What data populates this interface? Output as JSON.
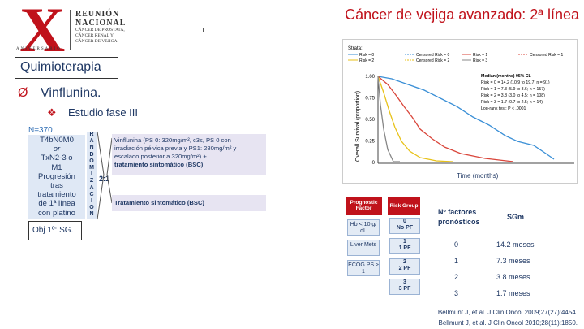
{
  "header": {
    "logo_mark": "X",
    "logo_title": [
      "REUNIÓN",
      "NACIONAL"
    ],
    "logo_sub": [
      "CÁNCER DE PRÓSTATA,",
      "CÁNCER RENAL Y",
      "CÁNCER DE VEJIGA"
    ],
    "logo_anniv": "ANIVERSARIO",
    "title": "Cáncer de vejiga avanzado: 2ª línea"
  },
  "section": "Quimioterapia",
  "bullet": "Vinflunina.",
  "sub_bullet": "Estudio fase III",
  "study": {
    "n": "N=370",
    "population": [
      "T4bN0M0",
      "or",
      "TxN2-3 o",
      "M1",
      "Progresión",
      "tras",
      "tratamiento",
      "de 1ª línea",
      "con platino"
    ],
    "randomization": [
      "R",
      "A",
      "N",
      "D",
      "O",
      "M",
      "I",
      "Z",
      "A",
      "C",
      "I",
      "O",
      "N"
    ],
    "ratio": "2:1",
    "arm1": [
      "Vinflunina (PS 0: 320mg/m², c3s, PS 0 con",
      "irradiación pélvica previa y PS1: 280mg/m² y",
      "escalado posterior a 320mg/m²)  +",
      "tratamiento sintomático (BSC)"
    ],
    "arm2": "Tratamiento sintomático (BSC)",
    "objective": "Obj 1º: SG."
  },
  "km": {
    "legend_title": "Strata:",
    "legend": [
      "Risk = 0",
      "Censored Risk = 0",
      "Risk = 1",
      "Censored Risk = 1",
      "Risk = 2",
      "Censored Risk = 2",
      "Risk = 3"
    ],
    "y_label": "Overall Survival (proportion)",
    "y_ticks": [
      "1.00",
      "0.75",
      "0.50",
      "0.25",
      "0"
    ],
    "x_label": "Time (months)",
    "median": [
      "Median (months) 95% CL",
      "Risk = 0 = 14.2 (10.9 to 19.7; n = 91)",
      "Risk = 1 = 7.3 (5.9 to 8.6; n = 157)",
      "Risk = 2 = 3.8 (3.0 to 4.5; n = 108)",
      "Risk = 3 = 1.7 (0.7 to 2.5; n = 14)",
      "Log-rank test: P < .0001"
    ]
  },
  "prognostic": {
    "factor_header": "Prognostic Factor",
    "group_header": "Risk Group",
    "factors": [
      "Hb < 10 g/ dL",
      "Liver Mets",
      "ECOG PS ≥ 1"
    ],
    "groups": [
      [
        "0",
        "No PF"
      ],
      [
        "1",
        "1 PF"
      ],
      [
        "2",
        "2 PF"
      ],
      [
        "3",
        "3 PF"
      ]
    ]
  },
  "sg_table": {
    "headers": [
      "Nº factores pronósticos",
      "SGm"
    ],
    "rows": [
      [
        "0",
        "14.2 meses"
      ],
      [
        "1",
        "7.3 meses"
      ],
      [
        "2",
        "3.8 meses"
      ],
      [
        "3",
        "1.7 meses"
      ]
    ]
  },
  "references": [
    "Bellmunt J, et al. J Clin Oncol 2009;27(27):4454.",
    "Bellmunt J, et al. J Clin Oncol 2010;28(11):1850."
  ]
}
